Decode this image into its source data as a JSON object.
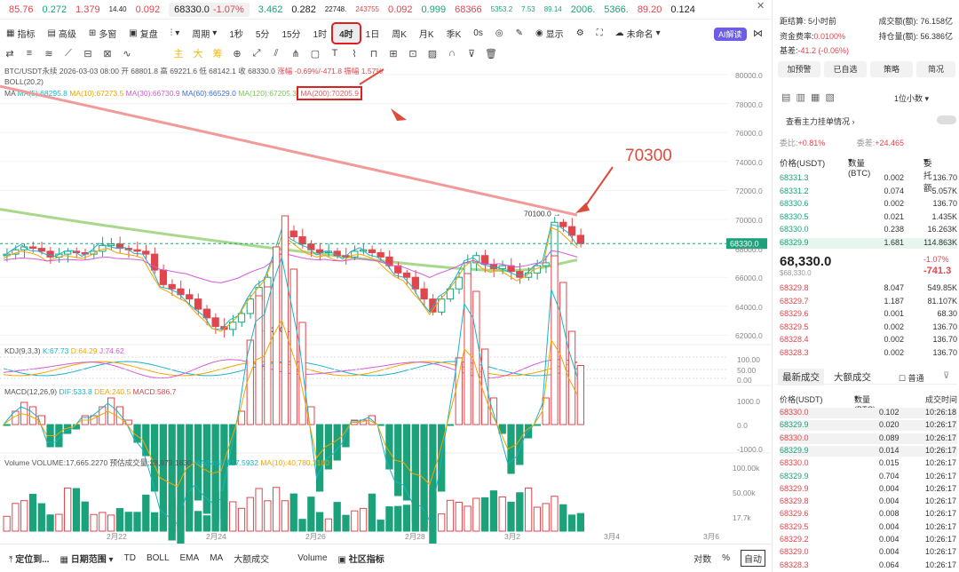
{
  "ticker": {
    "t1": "85.76",
    "t2": "0.272",
    "t3": "1.379",
    "t4": "14.40",
    "t5": "0.092",
    "pair": "68330.0",
    "pct": "-1.07%",
    "t6": "3.462",
    "t7": "0.282",
    "t8": "22748.",
    "t9": "243755",
    "t10": "0.092",
    "t11": "0.999",
    "t12": "68366",
    "t13": "5353.2",
    "t14": "7.53",
    "t15": "89.14",
    "t16": "2006.",
    "t17": "5366.",
    "t18": "89.20",
    "t19": "0.124"
  },
  "toolbar": {
    "indicator": "指标",
    "advanced": "高级",
    "multi": "多窗",
    "review": "复盘",
    "period": "周期",
    "p1": "1秒",
    "p2": "5分",
    "p3": "15分",
    "p4": "1时",
    "p5": "4时",
    "p6": "1日",
    "p7": "周K",
    "p8": "月K",
    "p9": "季K",
    "p10": "0s",
    "show": "显示",
    "uncommitted": "未命名",
    "ai": "AI解读"
  },
  "drawbar": {
    "a": "主",
    "b": "大",
    "c": "筹"
  },
  "legend": {
    "pair": "BTC/USDT永续 2026-03-03 08:00",
    "open": "开 68801.8",
    "high": "高 69221.6",
    "low": "低 68142.1",
    "close": "收 68330.0",
    "change": "涨幅 -0.69%/-471.8",
    "amp": "振幅 1.57%",
    "boll": "BOLL(20,2)",
    "ma": "MA",
    "ma5": "MA(5):68295.8",
    "ma10": "MA(10):67273.5",
    "ma30": "MA(30):66730.9",
    "ma60": "MA(60):66529.0",
    "ma120": "MA(120):67205.3",
    "ma200": "MA(200):70205.9"
  },
  "annot": {
    "big": "70300",
    "hi": "70100.0",
    "lo": "62401.7",
    "last": "68330.0"
  },
  "axis": {
    "price": [
      "80000.0",
      "78000.0",
      "76000.0",
      "74000.0",
      "72000.0",
      "70000.0",
      "68000.0",
      "66000.0",
      "64000.0",
      "62000.0"
    ],
    "kdj": [
      "100.00",
      "50.00",
      "0.00"
    ],
    "macd": [
      "1000.0",
      "0.0",
      "-1000.0"
    ],
    "vol": [
      "100.00k",
      "50.00k",
      "17.7k"
    ],
    "dates": [
      "2月22",
      "2月24",
      "2月26",
      "2月28",
      "3月2",
      "3月4",
      "3月6"
    ]
  },
  "kdj": {
    "name": "KDJ(9,3,3)",
    "k": "K:67.73",
    "d": "D:64.29",
    "j": "J:74.62"
  },
  "macd": {
    "name": "MACD(12,26,9)",
    "dif": "DIF:533.8",
    "dea": "DEA:240.5",
    "macd": "MACD:586.7"
  },
  "vol": {
    "name": "Volume",
    "val": "VOLUME:17,665.2270",
    "pred": "预估成交量:28,979.1830",
    "ma5": "MA(5):48,217.5932",
    "ma10": "MA(10):40,780.3180"
  },
  "bottom": {
    "b1": "定位到...",
    "b2": "日期范围",
    "b3": "TD",
    "b4": "BOLL",
    "b5": "EMA",
    "b6": "MA",
    "b7": "大额成交",
    "b8": "Volume",
    "b9": "社区指标",
    "b10": "对数",
    "b11": "%",
    "b12": "自动"
  },
  "right": {
    "settle": "距结算: 5小时前",
    "vol": "成交额(额): 76.158亿",
    "fund": "资金费率:",
    "fundv": "0.0100%",
    "hold": "持仓量(额): 56.386亿",
    "basis": "基差:",
    "basisv": "-41.2 (-0.06%)",
    "b1": "加预警",
    "b2": "已自选",
    "b3": "策略",
    "b4": "简况",
    "prec": "1位小数",
    "see": "查看主力挂单情况",
    "buy": "委比:",
    "buyv": "+0.81%",
    "diff": "委差:",
    "diffv": "+24.465",
    "h1": "价格(USDT)",
    "h2": "数量 (BTC)",
    "h3": "委托额",
    "mid": "68,330.0",
    "midsub": "$68,330.0",
    "chg": "-1.07%",
    "chg2": "-741.3",
    "tab1": "最新成交",
    "tab2": "大额成交",
    "normal": "普通",
    "th1": "价格(USDT)",
    "th2": "数量(BTC)",
    "th3": "成交时间"
  },
  "asks": [
    [
      "68331.3",
      "0.002",
      "136.70"
    ],
    [
      "68331.2",
      "0.074",
      "5.057K"
    ],
    [
      "68330.6",
      "0.002",
      "136.70"
    ],
    [
      "68330.5",
      "0.021",
      "1.435K"
    ],
    [
      "68330.0",
      "0.238",
      "16.263K"
    ],
    [
      "68329.9",
      "1.681",
      "114.863K"
    ]
  ],
  "bids": [
    [
      "68329.8",
      "8.047",
      "549.85K"
    ],
    [
      "68329.7",
      "1.187",
      "81.107K"
    ],
    [
      "68329.6",
      "0.001",
      "68.30"
    ],
    [
      "68329.5",
      "0.002",
      "136.70"
    ],
    [
      "68328.4",
      "0.002",
      "136.70"
    ],
    [
      "68328.3",
      "0.002",
      "136.70"
    ]
  ],
  "trades": [
    [
      "68330.0",
      "0.102",
      "10:26:18",
      "r"
    ],
    [
      "68329.9",
      "0.020",
      "10:26:17",
      "g"
    ],
    [
      "68330.0",
      "0.089",
      "10:26:17",
      "r"
    ],
    [
      "68329.9",
      "0.014",
      "10:26:17",
      "g"
    ],
    [
      "68330.0",
      "0.015",
      "10:26:17",
      "r"
    ],
    [
      "68329.9",
      "0.704",
      "10:26:17",
      "g"
    ],
    [
      "68329.9",
      "0.004",
      "10:26:17",
      "r"
    ],
    [
      "68329.8",
      "0.004",
      "10:26:17",
      "r"
    ],
    [
      "68329.6",
      "0.008",
      "10:26:17",
      "r"
    ],
    [
      "68329.5",
      "0.004",
      "10:26:17",
      "r"
    ],
    [
      "68329.2",
      "0.004",
      "10:26:17",
      "r"
    ],
    [
      "68329.0",
      "0.004",
      "10:26:17",
      "r"
    ],
    [
      "68328.3",
      "0.064",
      "10:26:17",
      "r"
    ]
  ],
  "colors": {
    "green": "#1ba27a",
    "red": "#e0464c"
  }
}
